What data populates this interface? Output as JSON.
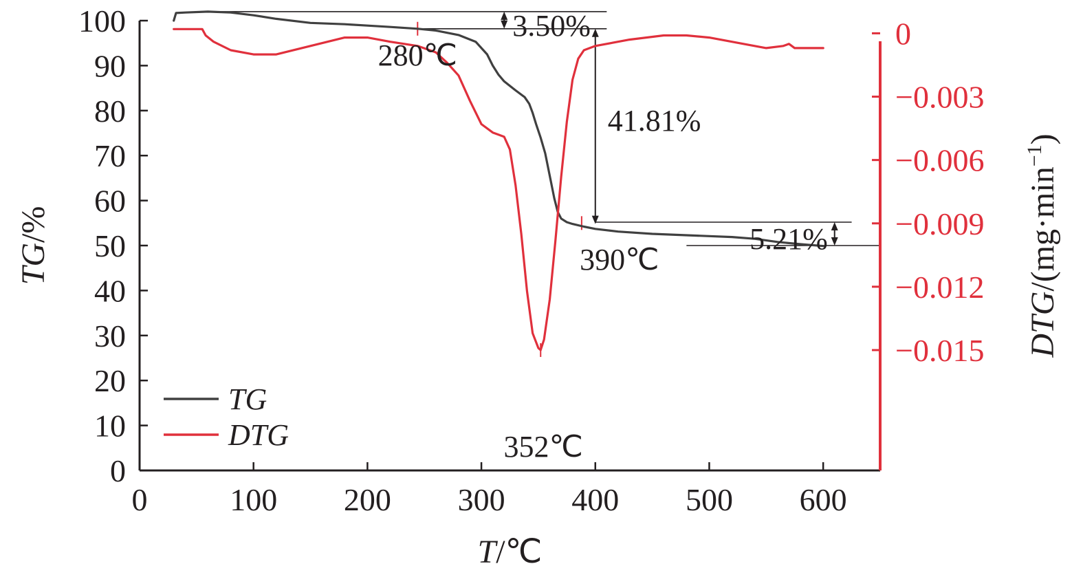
{
  "chart_data": {
    "type": "line",
    "xlabel": {
      "italic": "T",
      "rest": "/℃"
    },
    "ylabel_left": {
      "italic": "TG",
      "rest": "/%"
    },
    "ylabel_right": {
      "italic": "DTG",
      "rest": "/(mg·min",
      "sup": "−1",
      "close": ")"
    },
    "xlim": [
      0,
      650
    ],
    "ylim_left": [
      0,
      100
    ],
    "ylim_right": [
      -0.0207,
      0.0006
    ],
    "x_ticks": [
      0,
      100,
      200,
      300,
      400,
      500,
      600
    ],
    "x_tick_labels": [
      "0",
      "100",
      "200",
      "300",
      "400",
      "500",
      "600"
    ],
    "y_left_ticks": [
      0,
      10,
      20,
      30,
      40,
      50,
      60,
      70,
      80,
      90,
      100
    ],
    "y_left_tick_labels": [
      "0",
      "10",
      "20",
      "30",
      "40",
      "50",
      "60",
      "70",
      "80",
      "90",
      "100"
    ],
    "y_right_ticks": [
      0,
      -0.003,
      -0.006,
      -0.009,
      -0.012,
      -0.015
    ],
    "y_right_tick_labels": [
      "0",
      "−0.003",
      "−0.006",
      "−0.009",
      "−0.012",
      "−0.015"
    ],
    "colors": {
      "tg": "#404040",
      "dtg": "#e0303c",
      "axis_right": "#e0303c",
      "axis_left": "#231f20",
      "ref_lines": "#231f20"
    },
    "series": [
      {
        "name": "TG",
        "axis": "left",
        "x": [
          30,
          32,
          40,
          60,
          80,
          100,
          120,
          150,
          180,
          200,
          220,
          244,
          260,
          280,
          295,
          305,
          310,
          315,
          320,
          330,
          338,
          342,
          345,
          348,
          352,
          356,
          360,
          364,
          367,
          370,
          375,
          380,
          390,
          400,
          420,
          450,
          480,
          500,
          520,
          540,
          560,
          580,
          600
        ],
        "y": [
          100,
          101.7,
          101.8,
          102,
          101.8,
          101.2,
          100.4,
          99.5,
          99.2,
          98.9,
          98.6,
          98.2,
          97.8,
          96.8,
          95.3,
          92.5,
          90.0,
          88.0,
          86.5,
          84.5,
          83.0,
          81.5,
          79.5,
          77.0,
          74.0,
          70.5,
          65.5,
          60.5,
          57.5,
          56.0,
          55.2,
          54.8,
          54.2,
          53.7,
          53.1,
          52.6,
          52.3,
          52.1,
          51.9,
          51.5,
          50.8,
          50.3,
          49.9
        ]
      },
      {
        "name": "DTG",
        "axis": "right",
        "x": [
          30,
          55,
          58,
          65,
          80,
          100,
          120,
          150,
          180,
          200,
          220,
          244,
          260,
          270,
          280,
          290,
          300,
          310,
          315,
          320,
          325,
          330,
          335,
          340,
          345,
          350,
          352,
          355,
          360,
          365,
          370,
          375,
          380,
          385,
          390,
          400,
          430,
          460,
          480,
          500,
          530,
          550,
          565,
          570,
          575,
          580,
          600
        ],
        "y": [
          0.0002,
          0.0002,
          -0.0001,
          -0.0004,
          -0.0008,
          -0.001,
          -0.001,
          -0.0006,
          -0.0002,
          -0.0002,
          -0.0004,
          -0.0006,
          -0.0009,
          -0.0014,
          -0.002,
          -0.0032,
          -0.0043,
          -0.0047,
          -0.0048,
          -0.0049,
          -0.0055,
          -0.0072,
          -0.0095,
          -0.0122,
          -0.0142,
          -0.0149,
          -0.015,
          -0.0145,
          -0.0126,
          -0.0098,
          -0.0068,
          -0.0042,
          -0.0022,
          -0.0012,
          -0.0008,
          -0.0006,
          -0.0003,
          -0.0001,
          -0.0001,
          -0.0002,
          -0.0005,
          -0.0007,
          -0.0006,
          -0.0005,
          -0.0007,
          -0.0007,
          -0.0007
        ]
      }
    ],
    "annotations": {
      "mass_loss_1": {
        "text": "3.50%",
        "x": 320,
        "y_top": 102.0,
        "y_bottom": 98.2
      },
      "mass_loss_2": {
        "text": "41.81%",
        "x": 400,
        "y_top": 98.2,
        "y_bottom": 54.8
      },
      "mass_loss_3": {
        "text": "5.21%",
        "x": 610,
        "y_top": 55.2,
        "y_bottom": 50.0
      },
      "temp_280": {
        "text": "280℃",
        "x": 244,
        "y": 98.2
      },
      "temp_390": {
        "text": "390℃",
        "x": 388,
        "y": 55.0
      },
      "temp_352": {
        "text": "352℃",
        "x": 352,
        "y_dtg": -0.015
      }
    },
    "legend": {
      "position": "bottom-left",
      "items": [
        {
          "label": "TG",
          "color": "#404040"
        },
        {
          "label": "DTG",
          "color": "#e0303c"
        }
      ]
    }
  }
}
